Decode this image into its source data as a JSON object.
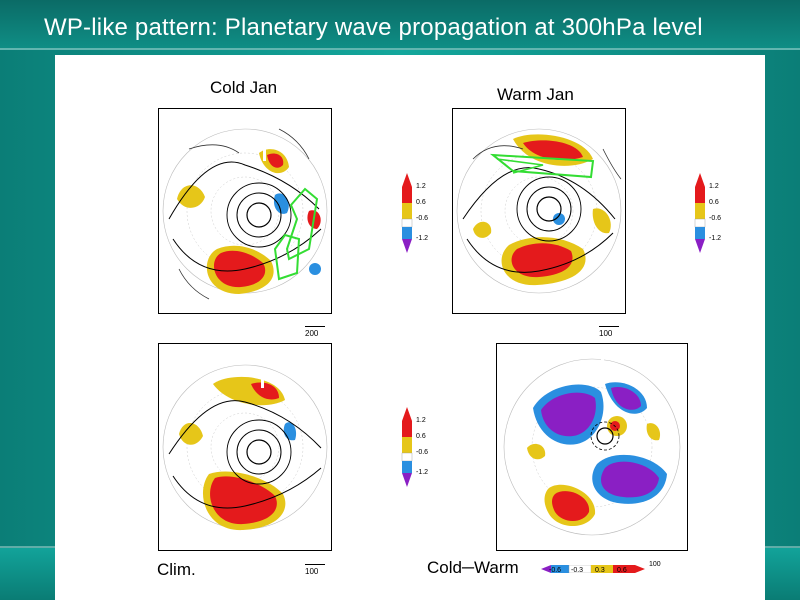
{
  "slide": {
    "title": "WP-like pattern: Planetary wave propagation at 300hPa level"
  },
  "panels": [
    {
      "id": "cold-jan",
      "label": "Cold Jan",
      "ref_vector": "200",
      "colorbar": [
        "1.2",
        "0.6",
        "-0.6",
        "-1.2"
      ]
    },
    {
      "id": "warm-jan",
      "label": "Warm Jan",
      "ref_vector": "100",
      "colorbar": [
        "1.2",
        "0.6",
        "-0.6",
        "-1.2"
      ]
    },
    {
      "id": "clim",
      "label": "Clim.",
      "ref_vector": "100",
      "colorbar": [
        "1.2",
        "0.6",
        "-0.6",
        "-1.2"
      ]
    },
    {
      "id": "cold-warm",
      "label_left": "Cold",
      "label_dash": "─",
      "label_right": "Warm",
      "colorbar": [
        "-0.6",
        "-0.3",
        "0.3",
        "0.6",
        "100"
      ]
    }
  ],
  "colors": {
    "red": "#e41a1c",
    "yellow": "#e6c619",
    "blue": "#2a8fe0",
    "purple": "#8a1fc4",
    "green_arrow": "#33dd33"
  }
}
